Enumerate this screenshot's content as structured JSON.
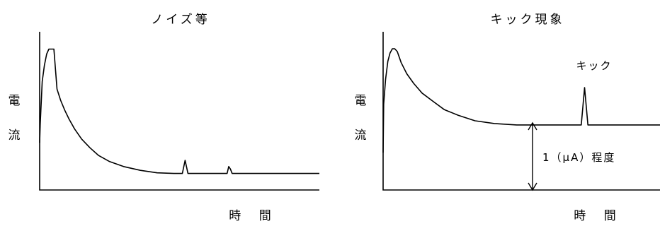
{
  "chart_data": [
    {
      "type": "line",
      "title": "ノイズ等",
      "ylabel": [
        "電",
        "流"
      ],
      "xlabel": "時 間",
      "series": [
        {
          "x": [
            0,
            0.2,
            0.9,
            1.7,
            2.5,
            3.3,
            4.2,
            5.1,
            6.2,
            7.5,
            9.0,
            10.5,
            12.5,
            15.0,
            18.0,
            21.0,
            25.0,
            30.0,
            36.0,
            42.0,
            48.0,
            50.0,
            51.0,
            52.0,
            53.0,
            60.0,
            67.0,
            67.6,
            68.2,
            68.8,
            69.4,
            100.0
          ],
          "y": [
            0.27,
            0.42,
            0.76,
            0.89,
            0.98,
            1.02,
            1.02,
            1.02,
            0.7,
            0.61,
            0.53,
            0.46,
            0.38,
            0.3,
            0.23,
            0.17,
            0.12,
            0.08,
            0.05,
            0.03,
            0.025,
            0.025,
            0.025,
            0.13,
            0.025,
            0.025,
            0.025,
            0.08,
            0.06,
            0.025,
            0.025,
            0.025
          ]
        }
      ]
    },
    {
      "type": "line",
      "title": "キック現象",
      "ylabel": [
        "電",
        "流"
      ],
      "xlabel": "時 間",
      "annotations": {
        "kick_label": "キック",
        "level_label": "1（μA）程度"
      },
      "series": [
        {
          "x": [
            0,
            0.2,
            0.9,
            1.7,
            2.5,
            3.3,
            4.2,
            5.1,
            6.5,
            8.5,
            11.0,
            14.0,
            18.0,
            22.0,
            27.0,
            33.0,
            40.0,
            48.0,
            53.0,
            70.0,
            71.2,
            72.4,
            73.6,
            74.5,
            100.0
          ],
          "y": [
            0.27,
            0.62,
            0.8,
            0.93,
            0.99,
            1.02,
            1.02,
            1.0,
            0.92,
            0.84,
            0.77,
            0.7,
            0.64,
            0.58,
            0.54,
            0.5,
            0.48,
            0.47,
            0.47,
            0.47,
            0.47,
            0.74,
            0.47,
            0.47,
            0.47
          ]
        }
      ]
    }
  ]
}
